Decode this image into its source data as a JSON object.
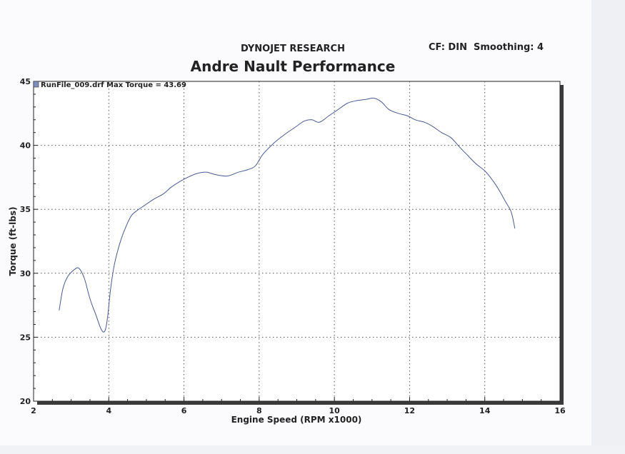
{
  "header": {
    "brand": "DYNOJET RESEARCH",
    "title": "Andre Nault Performance",
    "settings": "CF: DIN  Smoothing: 4"
  },
  "colors": {
    "curve": "#4a5a92",
    "grid": "#555555",
    "legend_marker": "#7f8fc0",
    "text": "#222222"
  },
  "chart_data": {
    "type": "line",
    "title": "Andre Nault Performance",
    "xlabel": "Engine Speed (RPM x1000)",
    "ylabel": "Torque (ft-lbs)",
    "xlim": [
      2,
      16
    ],
    "ylim": [
      20,
      45
    ],
    "x_ticks": [
      "2",
      "4",
      "6",
      "8",
      "10",
      "12",
      "14",
      "16"
    ],
    "y_ticks": [
      "20",
      "25",
      "30",
      "35",
      "40",
      "45"
    ],
    "grid": true,
    "legend_position": "top-left",
    "series": [
      {
        "name": "RunFile_009.drf Max Torque = 43.69",
        "x": [
          2.68,
          2.78,
          2.9,
          3.05,
          3.2,
          3.35,
          3.5,
          3.65,
          3.8,
          3.9,
          3.97,
          4.05,
          4.15,
          4.3,
          4.45,
          4.6,
          4.75,
          4.95,
          5.2,
          5.45,
          5.65,
          5.85,
          6.1,
          6.35,
          6.6,
          6.85,
          7.15,
          7.45,
          7.7,
          7.9,
          8.1,
          8.4,
          8.7,
          8.95,
          9.2,
          9.4,
          9.6,
          9.85,
          10.1,
          10.35,
          10.6,
          10.85,
          11.05,
          11.25,
          11.45,
          11.7,
          11.95,
          12.15,
          12.4,
          12.6,
          12.85,
          13.1,
          13.35,
          13.55,
          13.75,
          14.0,
          14.2,
          14.4,
          14.55,
          14.7,
          14.8
        ],
        "y": [
          27.1,
          28.8,
          29.7,
          30.2,
          30.4,
          29.6,
          28.0,
          26.8,
          25.6,
          25.5,
          26.6,
          28.8,
          30.7,
          32.4,
          33.6,
          34.5,
          34.9,
          35.3,
          35.8,
          36.2,
          36.7,
          37.1,
          37.5,
          37.8,
          37.9,
          37.7,
          37.6,
          37.9,
          38.1,
          38.4,
          39.3,
          40.2,
          40.9,
          41.4,
          41.9,
          42.0,
          41.8,
          42.3,
          42.8,
          43.3,
          43.5,
          43.6,
          43.69,
          43.4,
          42.8,
          42.5,
          42.3,
          42.0,
          41.8,
          41.5,
          41.0,
          40.6,
          39.8,
          39.2,
          38.6,
          38.0,
          37.3,
          36.4,
          35.6,
          34.8,
          33.5
        ]
      }
    ]
  }
}
